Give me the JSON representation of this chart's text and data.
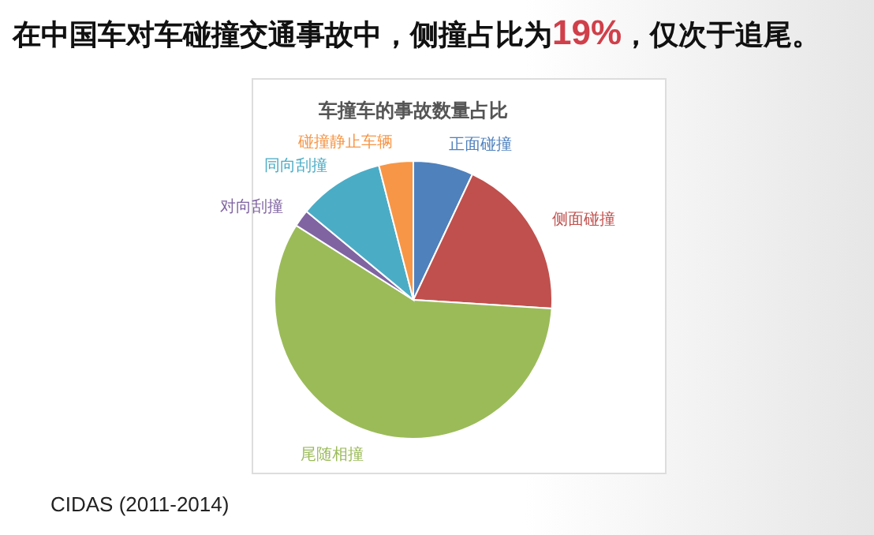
{
  "chart_data": {
    "type": "pie",
    "title": "在中国车对车碰撞交通事故中，侧撞占比为19%，仅次于追尾。",
    "subtitle": "车撞车的事故数量占比",
    "categories": [
      "正面碰撞",
      "侧面碰撞",
      "尾随相撞",
      "对向刮撞",
      "同向刮撞",
      "碰撞静止车辆"
    ],
    "values": [
      7,
      19,
      58,
      2,
      10,
      4
    ],
    "colors": [
      "#4f81bd",
      "#c0504d",
      "#9bbb59",
      "#8064a2",
      "#4bacc6",
      "#f79646"
    ],
    "annotations": [
      "CIDAS (2011-2014)"
    ]
  }
}
